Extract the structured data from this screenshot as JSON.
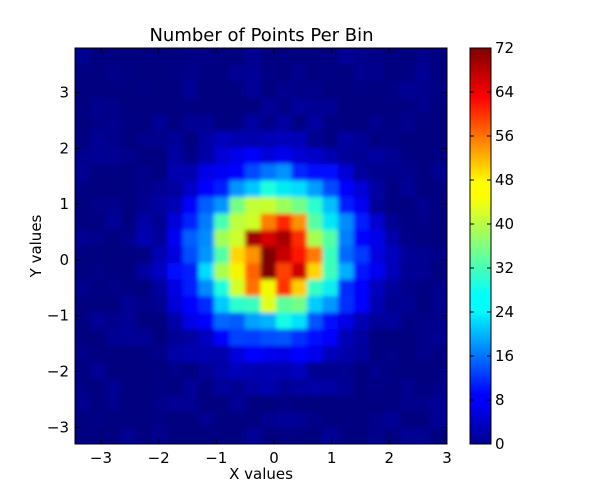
{
  "chart_data": {
    "type": "heatmap",
    "title": "Number of Points Per Bin",
    "xlabel": "X values",
    "ylabel": "Y values",
    "xlim": [
      -3.45,
      3.0
    ],
    "ylim": [
      -3.3,
      3.8
    ],
    "xticks": [
      -3,
      -2,
      -1,
      0,
      1,
      2,
      3
    ],
    "yticks": [
      -3,
      -2,
      -1,
      0,
      1,
      2,
      3
    ],
    "xtick_labels": [
      "−3",
      "−2",
      "−1",
      "0",
      "1",
      "2",
      "3"
    ],
    "ytick_labels": [
      "−3",
      "−2",
      "−1",
      "0",
      "1",
      "2",
      "3"
    ],
    "colormap": "jet",
    "color_range": [
      0,
      72
    ],
    "colorbar_ticks": [
      0,
      8,
      16,
      24,
      32,
      40,
      48,
      56,
      64,
      72
    ],
    "colorbar_tick_labels": [
      "0",
      "8",
      "16",
      "24",
      "32",
      "40",
      "48",
      "56",
      "64",
      "72"
    ],
    "distribution": "2D Gaussian counts centered near (0, 0.1); peak about 72 bins near the center, falling to about 0 beyond radius ~2.5",
    "center": [
      0.0,
      0.1
    ],
    "sigma": [
      0.8,
      0.85
    ],
    "peak_count": 72,
    "grid_bins": [
      24,
      24
    ]
  }
}
